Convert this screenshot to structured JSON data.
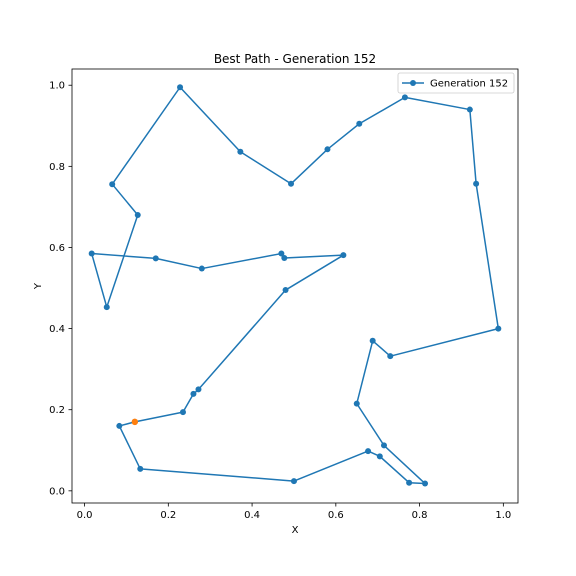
{
  "chart_data": {
    "type": "line",
    "title": "Best Path - Generation 152",
    "xlabel": "X",
    "ylabel": "Y",
    "xlim": [
      -0.03,
      1.035
    ],
    "ylim": [
      -0.03,
      1.04
    ],
    "xticks": [
      0.0,
      0.2,
      0.4,
      0.6,
      0.8,
      1.0
    ],
    "yticks": [
      0.0,
      0.2,
      0.4,
      0.6,
      0.8,
      1.0
    ],
    "xtick_labels": [
      "0.0",
      "0.2",
      "0.4",
      "0.6",
      "0.8",
      "1.0"
    ],
    "ytick_labels": [
      "0.0",
      "0.2",
      "0.4",
      "0.6",
      "0.8",
      "1.0"
    ],
    "grid": false,
    "legend_position": "top-right",
    "series": [
      {
        "name": "Generation 152",
        "color": "#1f77b4",
        "marker": "circle",
        "points": [
          [
            0.12,
            0.17
          ],
          [
            0.083,
            0.16
          ],
          [
            0.133,
            0.054
          ],
          [
            0.5,
            0.024
          ],
          [
            0.677,
            0.098
          ],
          [
            0.705,
            0.085
          ],
          [
            0.775,
            0.02
          ],
          [
            0.813,
            0.018
          ],
          [
            0.715,
            0.112
          ],
          [
            0.65,
            0.215
          ],
          [
            0.688,
            0.37
          ],
          [
            0.73,
            0.332
          ],
          [
            0.988,
            0.4
          ],
          [
            0.935,
            0.757
          ],
          [
            0.92,
            0.94
          ],
          [
            0.765,
            0.97
          ],
          [
            0.656,
            0.905
          ],
          [
            0.58,
            0.842
          ],
          [
            0.493,
            0.757
          ],
          [
            0.372,
            0.836
          ],
          [
            0.228,
            0.995
          ],
          [
            0.066,
            0.756
          ],
          [
            0.127,
            0.68
          ],
          [
            0.053,
            0.453
          ],
          [
            0.017,
            0.585
          ],
          [
            0.17,
            0.573
          ],
          [
            0.28,
            0.548
          ],
          [
            0.47,
            0.585
          ],
          [
            0.477,
            0.574
          ],
          [
            0.618,
            0.581
          ],
          [
            0.48,
            0.495
          ],
          [
            0.272,
            0.25
          ],
          [
            0.26,
            0.239
          ],
          [
            0.235,
            0.194
          ],
          [
            0.12,
            0.17
          ]
        ]
      }
    ],
    "start_point": {
      "x": 0.12,
      "y": 0.17,
      "color": "#ff7f0e"
    }
  }
}
